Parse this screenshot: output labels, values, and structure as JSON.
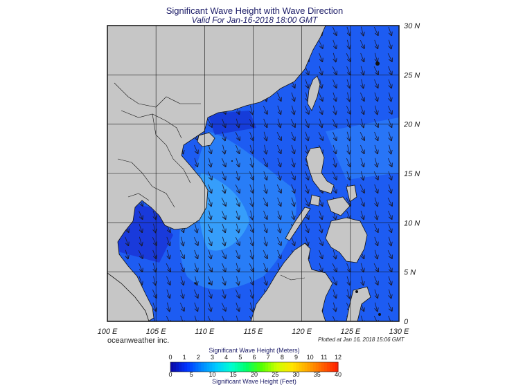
{
  "title": "Significant Wave Height with Wave Direction",
  "subtitle": "Valid For Jan-16-2018 18:00 GMT",
  "brand": "oceanweather inc.",
  "plotted_note": "Plotted at Jan 16, 2018 15:06 GMT",
  "map": {
    "lon_range": [
      100,
      130
    ],
    "lat_range": [
      0,
      30
    ],
    "lon_labels": [
      "100 E",
      "105 E",
      "110 E",
      "115 E",
      "120 E",
      "125 E",
      "130 E"
    ],
    "lat_labels": [
      "0",
      "5 N",
      "10 N",
      "15 N",
      "20 N",
      "25 N",
      "30 N"
    ],
    "grid": true,
    "land_color": "#c6c6c6",
    "arrow_direction": "towards south-southwest"
  },
  "colorbar": {
    "title_meters": "Significant Wave Height (Meters)",
    "title_feet": "Significant Wave Height (Feet)",
    "meters_ticks": [
      "0",
      "1",
      "2",
      "3",
      "4",
      "5",
      "6",
      "7",
      "8",
      "9",
      "10",
      "11",
      "12"
    ],
    "feet_ticks": [
      "0",
      "5",
      "10",
      "15",
      "20",
      "25",
      "30",
      "35",
      "40"
    ],
    "colors": [
      "#0a0aa8",
      "#0033ff",
      "#0088ff",
      "#00ccff",
      "#00ffd0",
      "#00ff66",
      "#55ff00",
      "#ccff00",
      "#ffe600",
      "#ffaa00",
      "#ff6600",
      "#ff2200"
    ]
  }
}
